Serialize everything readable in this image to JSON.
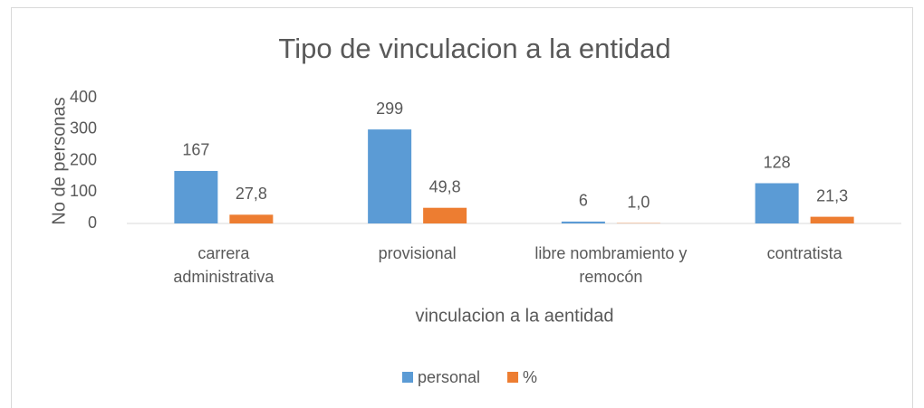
{
  "chart_data": {
    "type": "bar",
    "title": "Tipo de vinculacion a la entidad",
    "x_label": "vinculacion a la aentidad",
    "y_label": "No de personas",
    "categories": [
      "carrera\nadministrativa",
      "provisional",
      "libre nombramiento y\nremocón",
      "contratista"
    ],
    "series": [
      {
        "name": "personal",
        "color": "#5b9bd5",
        "values": [
          167,
          299,
          6,
          128
        ]
      },
      {
        "name": "%",
        "color": "#ed7d31",
        "values": [
          27.8,
          49.8,
          1.0,
          21.3
        ],
        "value_labels": [
          "27,8",
          "49,8",
          "1,0",
          "21,3"
        ]
      }
    ],
    "ylim": [
      0,
      400
    ],
    "yticks": [
      0,
      100,
      200,
      300,
      400
    ],
    "grid": false,
    "legend": "bottom"
  }
}
